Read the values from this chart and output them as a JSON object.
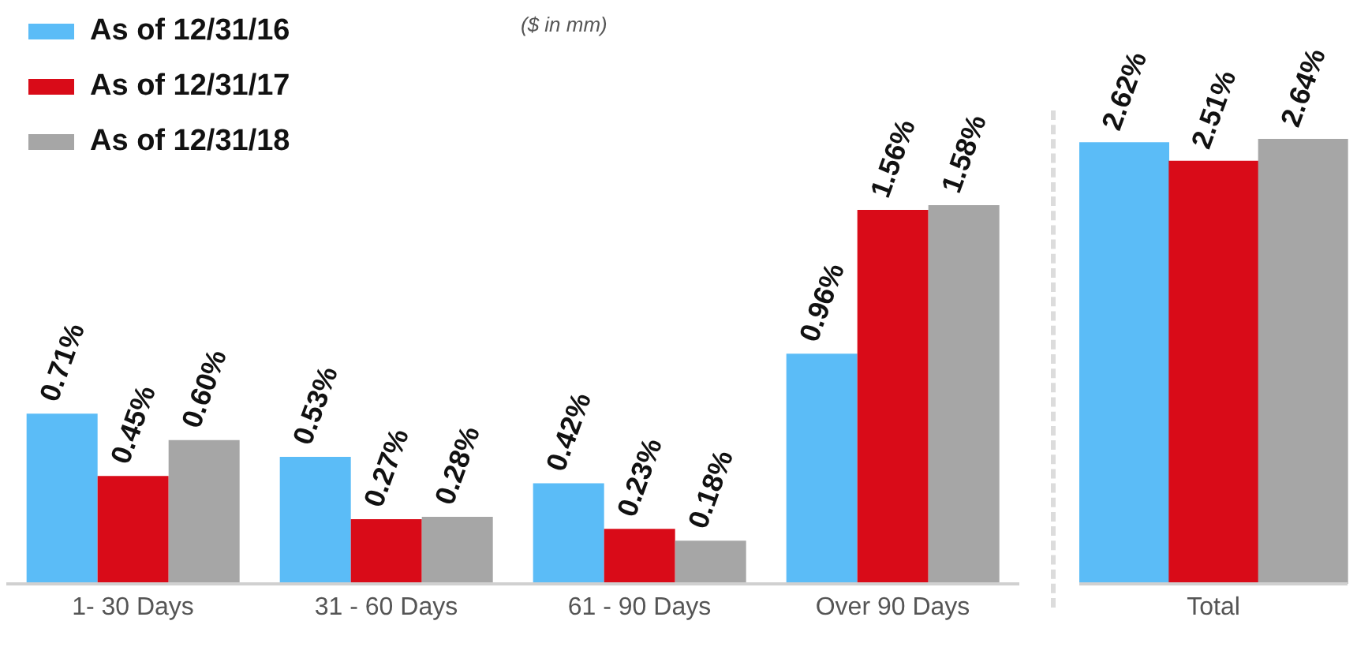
{
  "chart_data": [
    {
      "type": "bar",
      "subtitle": "($ in mm)",
      "categories": [
        "1- 30 Days",
        "31 - 60 Days",
        "61 - 90 Days",
        "Over 90 Days"
      ],
      "legend": "top left",
      "tick_labels": "x",
      "series": [
        {
          "name": "As of 12/31/16",
          "color": "#5bbcf7",
          "values": [
            0.71,
            0.53,
            0.42,
            0.96
          ],
          "value_labels": [
            "0.71%",
            "0.53%",
            "0.42%",
            "0.96%"
          ]
        },
        {
          "name": "As of 12/31/17",
          "color": "#d90b18",
          "values": [
            0.45,
            0.27,
            0.23,
            1.56
          ],
          "value_labels": [
            "0.45%",
            "0.27%",
            "0.23%",
            "1.56%"
          ]
        },
        {
          "name": "As of 12/31/18",
          "color": "#a6a6a6",
          "values": [
            0.6,
            0.28,
            0.18,
            1.58
          ],
          "value_labels": [
            "0.60%",
            "0.28%",
            "0.18%",
            "1.58%"
          ]
        }
      ]
    },
    {
      "type": "bar",
      "categories": [
        null,
        "Total",
        null
      ],
      "tick_labels": "x",
      "series": [
        {
          "colors": [
            "#5bbcf7",
            "#d90b18",
            "#a6a6a6"
          ],
          "values": [
            2.62,
            2.51,
            2.64
          ],
          "value_labels": [
            "2.62%",
            "2.51%",
            "2.64%"
          ]
        }
      ]
    }
  ]
}
